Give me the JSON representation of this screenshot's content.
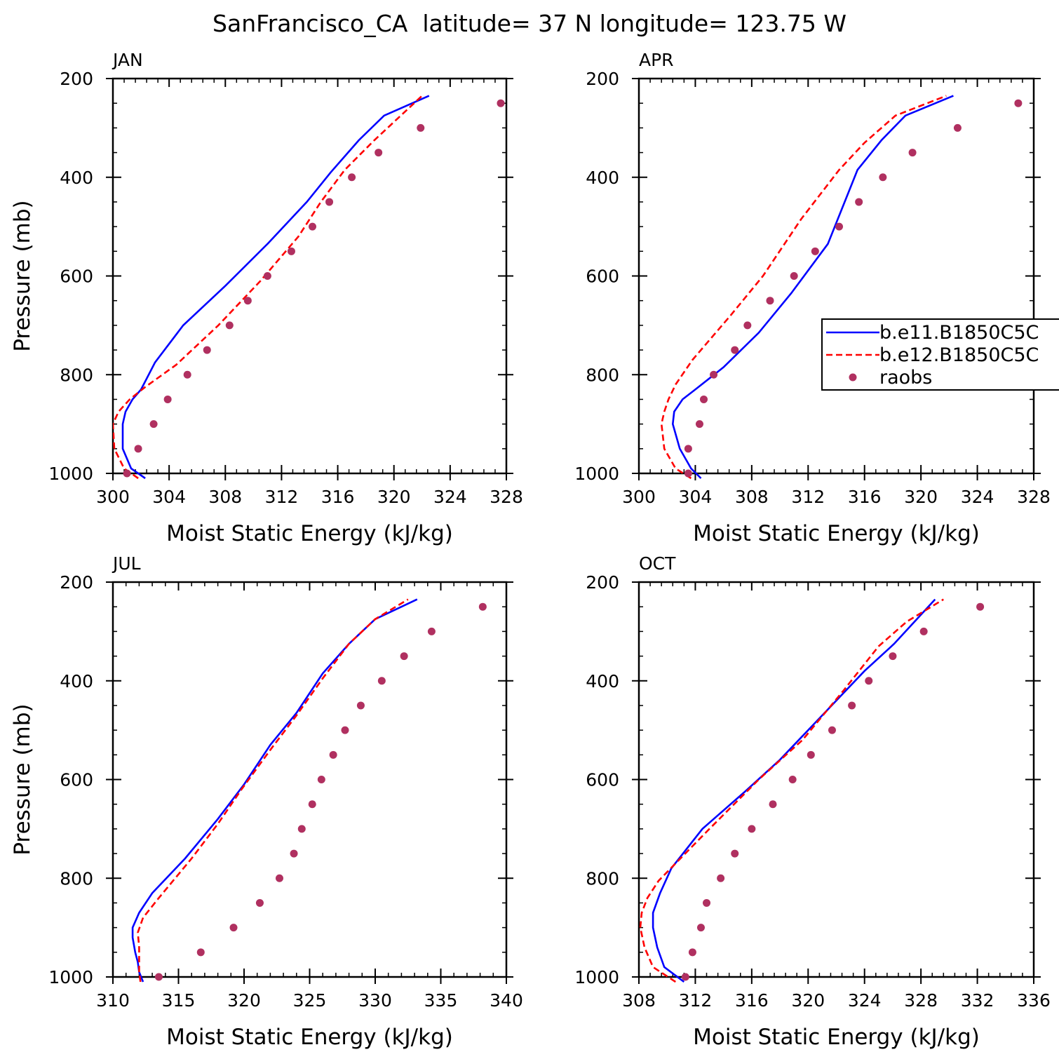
{
  "figure": {
    "title": "SanFrancisco_CA  latitude= 37 N longitude= 123.75 W"
  },
  "colors": {
    "model1": "#0000ff",
    "model2": "#ff0000",
    "raobs": "#b03060",
    "axis": "#000000"
  },
  "legend": {
    "entries": [
      {
        "label": "b.e11.B1850C5C",
        "style": "solid-line",
        "color": "#0000ff"
      },
      {
        "label": "b.e12.B1850C5C",
        "style": "dashed-line",
        "color": "#ff0000"
      },
      {
        "label": "raobs",
        "style": "marker",
        "color": "#b03060"
      }
    ],
    "placement": "right of APR panel, around 700-850 mb"
  },
  "chart_data": [
    {
      "type": "line",
      "panel": "JAN",
      "xlabel": "Moist Static Energy (kJ/kg)",
      "ylabel": "Pressure (mb)",
      "xlim": [
        300,
        328
      ],
      "x_ticks": [
        300,
        304,
        308,
        312,
        316,
        320,
        324,
        328
      ],
      "ylim": [
        200,
        1000
      ],
      "y_ticks": [
        200,
        400,
        600,
        800,
        1000
      ],
      "y_reversed": true,
      "series": [
        {
          "name": "b.e11.B1850C5C",
          "style": "solid",
          "x": [
            302.3,
            301.3,
            300.7,
            300.7,
            300.9,
            301.4,
            302.0,
            303.0,
            305.0,
            308.0,
            311.0,
            313.8,
            315.5,
            317.5,
            319.3,
            322.5
          ],
          "y": [
            1010,
            990,
            950,
            900,
            875,
            850,
            830,
            775,
            700,
            620,
            535,
            450,
            390,
            325,
            275,
            235
          ]
        },
        {
          "name": "b.e12.B1850C5C",
          "style": "dashed",
          "x": [
            301.8,
            300.8,
            300.1,
            300.0,
            300.4,
            301.2,
            302.3,
            304.5,
            307.5,
            310.5,
            313.2,
            314.8,
            316.5,
            318.6,
            322.0
          ],
          "y": [
            1010,
            990,
            950,
            900,
            875,
            850,
            825,
            780,
            700,
            610,
            520,
            450,
            385,
            325,
            235
          ]
        },
        {
          "name": "raobs",
          "style": "marker",
          "x": [
            301.0,
            301.8,
            302.9,
            303.9,
            305.3,
            306.7,
            308.3,
            309.6,
            311.0,
            312.7,
            314.2,
            315.4,
            317.0,
            318.9,
            321.9,
            327.6
          ],
          "y": [
            1000,
            950,
            900,
            850,
            800,
            750,
            700,
            650,
            600,
            550,
            500,
            450,
            400,
            350,
            300,
            250
          ]
        }
      ]
    },
    {
      "type": "line",
      "panel": "APR",
      "xlabel": "Moist Static Energy (kJ/kg)",
      "ylabel": "",
      "xlim": [
        300,
        328
      ],
      "x_ticks": [
        300,
        304,
        308,
        312,
        316,
        320,
        324,
        328
      ],
      "ylim": [
        200,
        1000
      ],
      "y_ticks": [
        200,
        400,
        600,
        800,
        1000
      ],
      "y_reversed": true,
      "series": [
        {
          "name": "b.e11.B1850C5C",
          "style": "solid",
          "x": [
            304.4,
            303.7,
            302.9,
            302.4,
            302.5,
            303.1,
            304.0,
            306.0,
            308.5,
            310.8,
            313.4,
            315.5,
            317.2,
            318.9,
            322.3
          ],
          "y": [
            1010,
            990,
            950,
            900,
            875,
            850,
            830,
            785,
            715,
            635,
            535,
            385,
            325,
            275,
            235
          ]
        },
        {
          "name": "b.e12.B1850C5C",
          "style": "dashed",
          "x": [
            303.7,
            302.6,
            301.8,
            301.6,
            301.8,
            302.1,
            302.6,
            303.8,
            306.5,
            308.8,
            311.5,
            314.2,
            316.0,
            318.2,
            321.8
          ],
          "y": [
            1010,
            990,
            950,
            900,
            875,
            850,
            820,
            770,
            680,
            600,
            485,
            385,
            330,
            275,
            235
          ]
        },
        {
          "name": "raobs",
          "style": "marker",
          "x": [
            303.5,
            303.5,
            304.3,
            304.6,
            305.3,
            306.8,
            307.7,
            309.3,
            311.0,
            312.5,
            314.2,
            315.6,
            317.3,
            319.4,
            322.6,
            326.9
          ],
          "y": [
            1000,
            950,
            900,
            850,
            800,
            750,
            700,
            650,
            600,
            550,
            500,
            450,
            400,
            350,
            300,
            250
          ]
        }
      ]
    },
    {
      "type": "line",
      "panel": "JUL",
      "xlabel": "Moist Static Energy (kJ/kg)",
      "ylabel": "Pressure (mb)",
      "xlim": [
        310,
        340
      ],
      "x_ticks": [
        310,
        315,
        320,
        325,
        330,
        335,
        340
      ],
      "ylim": [
        200,
        1000
      ],
      "y_ticks": [
        200,
        400,
        600,
        800,
        1000
      ],
      "y_reversed": true,
      "series": [
        {
          "name": "b.e11.B1850C5C",
          "style": "solid",
          "x": [
            312.3,
            312.0,
            311.9,
            311.7,
            311.5,
            311.5,
            312.0,
            313.0,
            315.5,
            318.0,
            320.0,
            322.0,
            324.0,
            326.0,
            328.0,
            330.0,
            333.2
          ],
          "y": [
            1010,
            990,
            970,
            950,
            920,
            900,
            870,
            830,
            760,
            680,
            610,
            530,
            465,
            385,
            325,
            275,
            235
          ]
        },
        {
          "name": "b.e12.B1850C5C",
          "style": "dashed",
          "x": [
            312.1,
            312.0,
            312.0,
            312.0,
            311.9,
            312.3,
            313.5,
            316.0,
            318.0,
            319.8,
            322.0,
            324.0,
            326.0,
            328.0,
            330.0,
            332.5
          ],
          "y": [
            1010,
            990,
            970,
            940,
            910,
            880,
            840,
            760,
            690,
            620,
            540,
            470,
            395,
            325,
            275,
            235
          ]
        },
        {
          "name": "raobs",
          "style": "marker",
          "x": [
            313.5,
            316.7,
            319.2,
            321.2,
            322.7,
            323.8,
            324.4,
            325.2,
            325.9,
            326.8,
            327.7,
            328.9,
            330.5,
            332.2,
            334.3,
            338.2
          ],
          "y": [
            1000,
            950,
            900,
            850,
            800,
            750,
            700,
            650,
            600,
            550,
            500,
            450,
            400,
            350,
            300,
            250
          ]
        }
      ]
    },
    {
      "type": "line",
      "panel": "OCT",
      "xlabel": "Moist Static Energy (kJ/kg)",
      "ylabel": "",
      "xlim": [
        308,
        336
      ],
      "x_ticks": [
        308,
        312,
        316,
        320,
        324,
        328,
        332,
        336
      ],
      "ylim": [
        200,
        1000
      ],
      "y_ticks": [
        200,
        400,
        600,
        800,
        1000
      ],
      "y_reversed": true,
      "series": [
        {
          "name": "b.e11.B1850C5C",
          "style": "solid",
          "x": [
            311.2,
            309.8,
            309.3,
            309.0,
            309.0,
            309.5,
            310.3,
            312.5,
            315.5,
            318.0,
            321.0,
            324.0,
            326.1,
            329.0
          ],
          "y": [
            1010,
            980,
            940,
            900,
            870,
            830,
            780,
            700,
            625,
            560,
            470,
            380,
            325,
            235
          ]
        },
        {
          "name": "b.e12.B1850C5C",
          "style": "dashed",
          "x": [
            310.6,
            309.0,
            308.4,
            308.1,
            308.2,
            308.6,
            309.4,
            310.6,
            313.0,
            316.5,
            319.6,
            322.5,
            325.0,
            327.0,
            329.6
          ],
          "y": [
            1010,
            980,
            940,
            900,
            870,
            840,
            805,
            770,
            700,
            600,
            520,
            420,
            330,
            280,
            235
          ]
        },
        {
          "name": "raobs",
          "style": "marker",
          "x": [
            311.3,
            311.8,
            312.4,
            312.8,
            313.8,
            314.8,
            316.0,
            317.5,
            318.9,
            320.2,
            321.7,
            323.1,
            324.3,
            326.0,
            328.2,
            332.2
          ],
          "y": [
            1000,
            950,
            900,
            850,
            800,
            750,
            700,
            650,
            600,
            550,
            500,
            450,
            400,
            350,
            300,
            250
          ]
        }
      ]
    }
  ]
}
